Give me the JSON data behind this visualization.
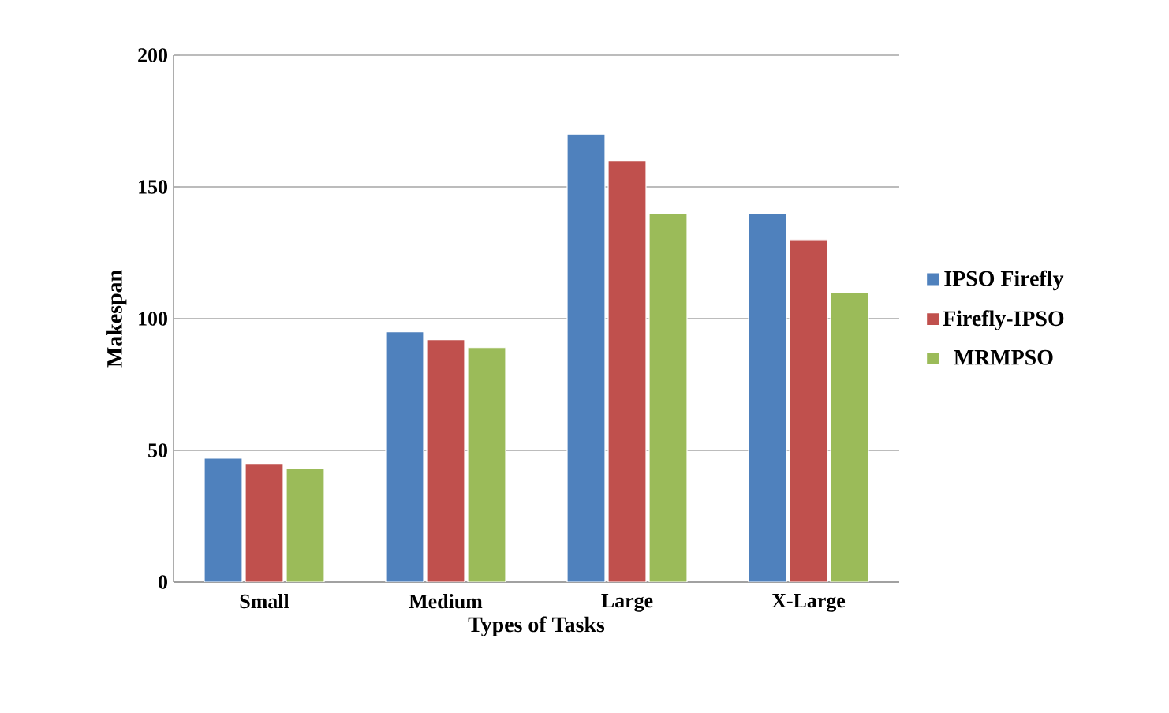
{
  "chart_data": {
    "type": "bar",
    "xlabel": "Types of Tasks",
    "ylabel": "Makespan",
    "categories": [
      "Small",
      "Medium",
      "Large",
      "X-Large"
    ],
    "series": [
      {
        "name": "IPSO Firefly",
        "color": "#4f81bd",
        "values": [
          47,
          95,
          170,
          140
        ]
      },
      {
        "name": "Firefly-IPSO",
        "color": "#c0504d",
        "values": [
          45,
          92,
          160,
          130
        ]
      },
      {
        "name": "MRMPSO",
        "color": "#9bbb59",
        "values": [
          43,
          89,
          140,
          110
        ]
      }
    ],
    "ylim": [
      0,
      200
    ],
    "yticks": [
      0,
      50,
      100,
      150,
      200
    ],
    "grid": "y",
    "legend": "right"
  }
}
